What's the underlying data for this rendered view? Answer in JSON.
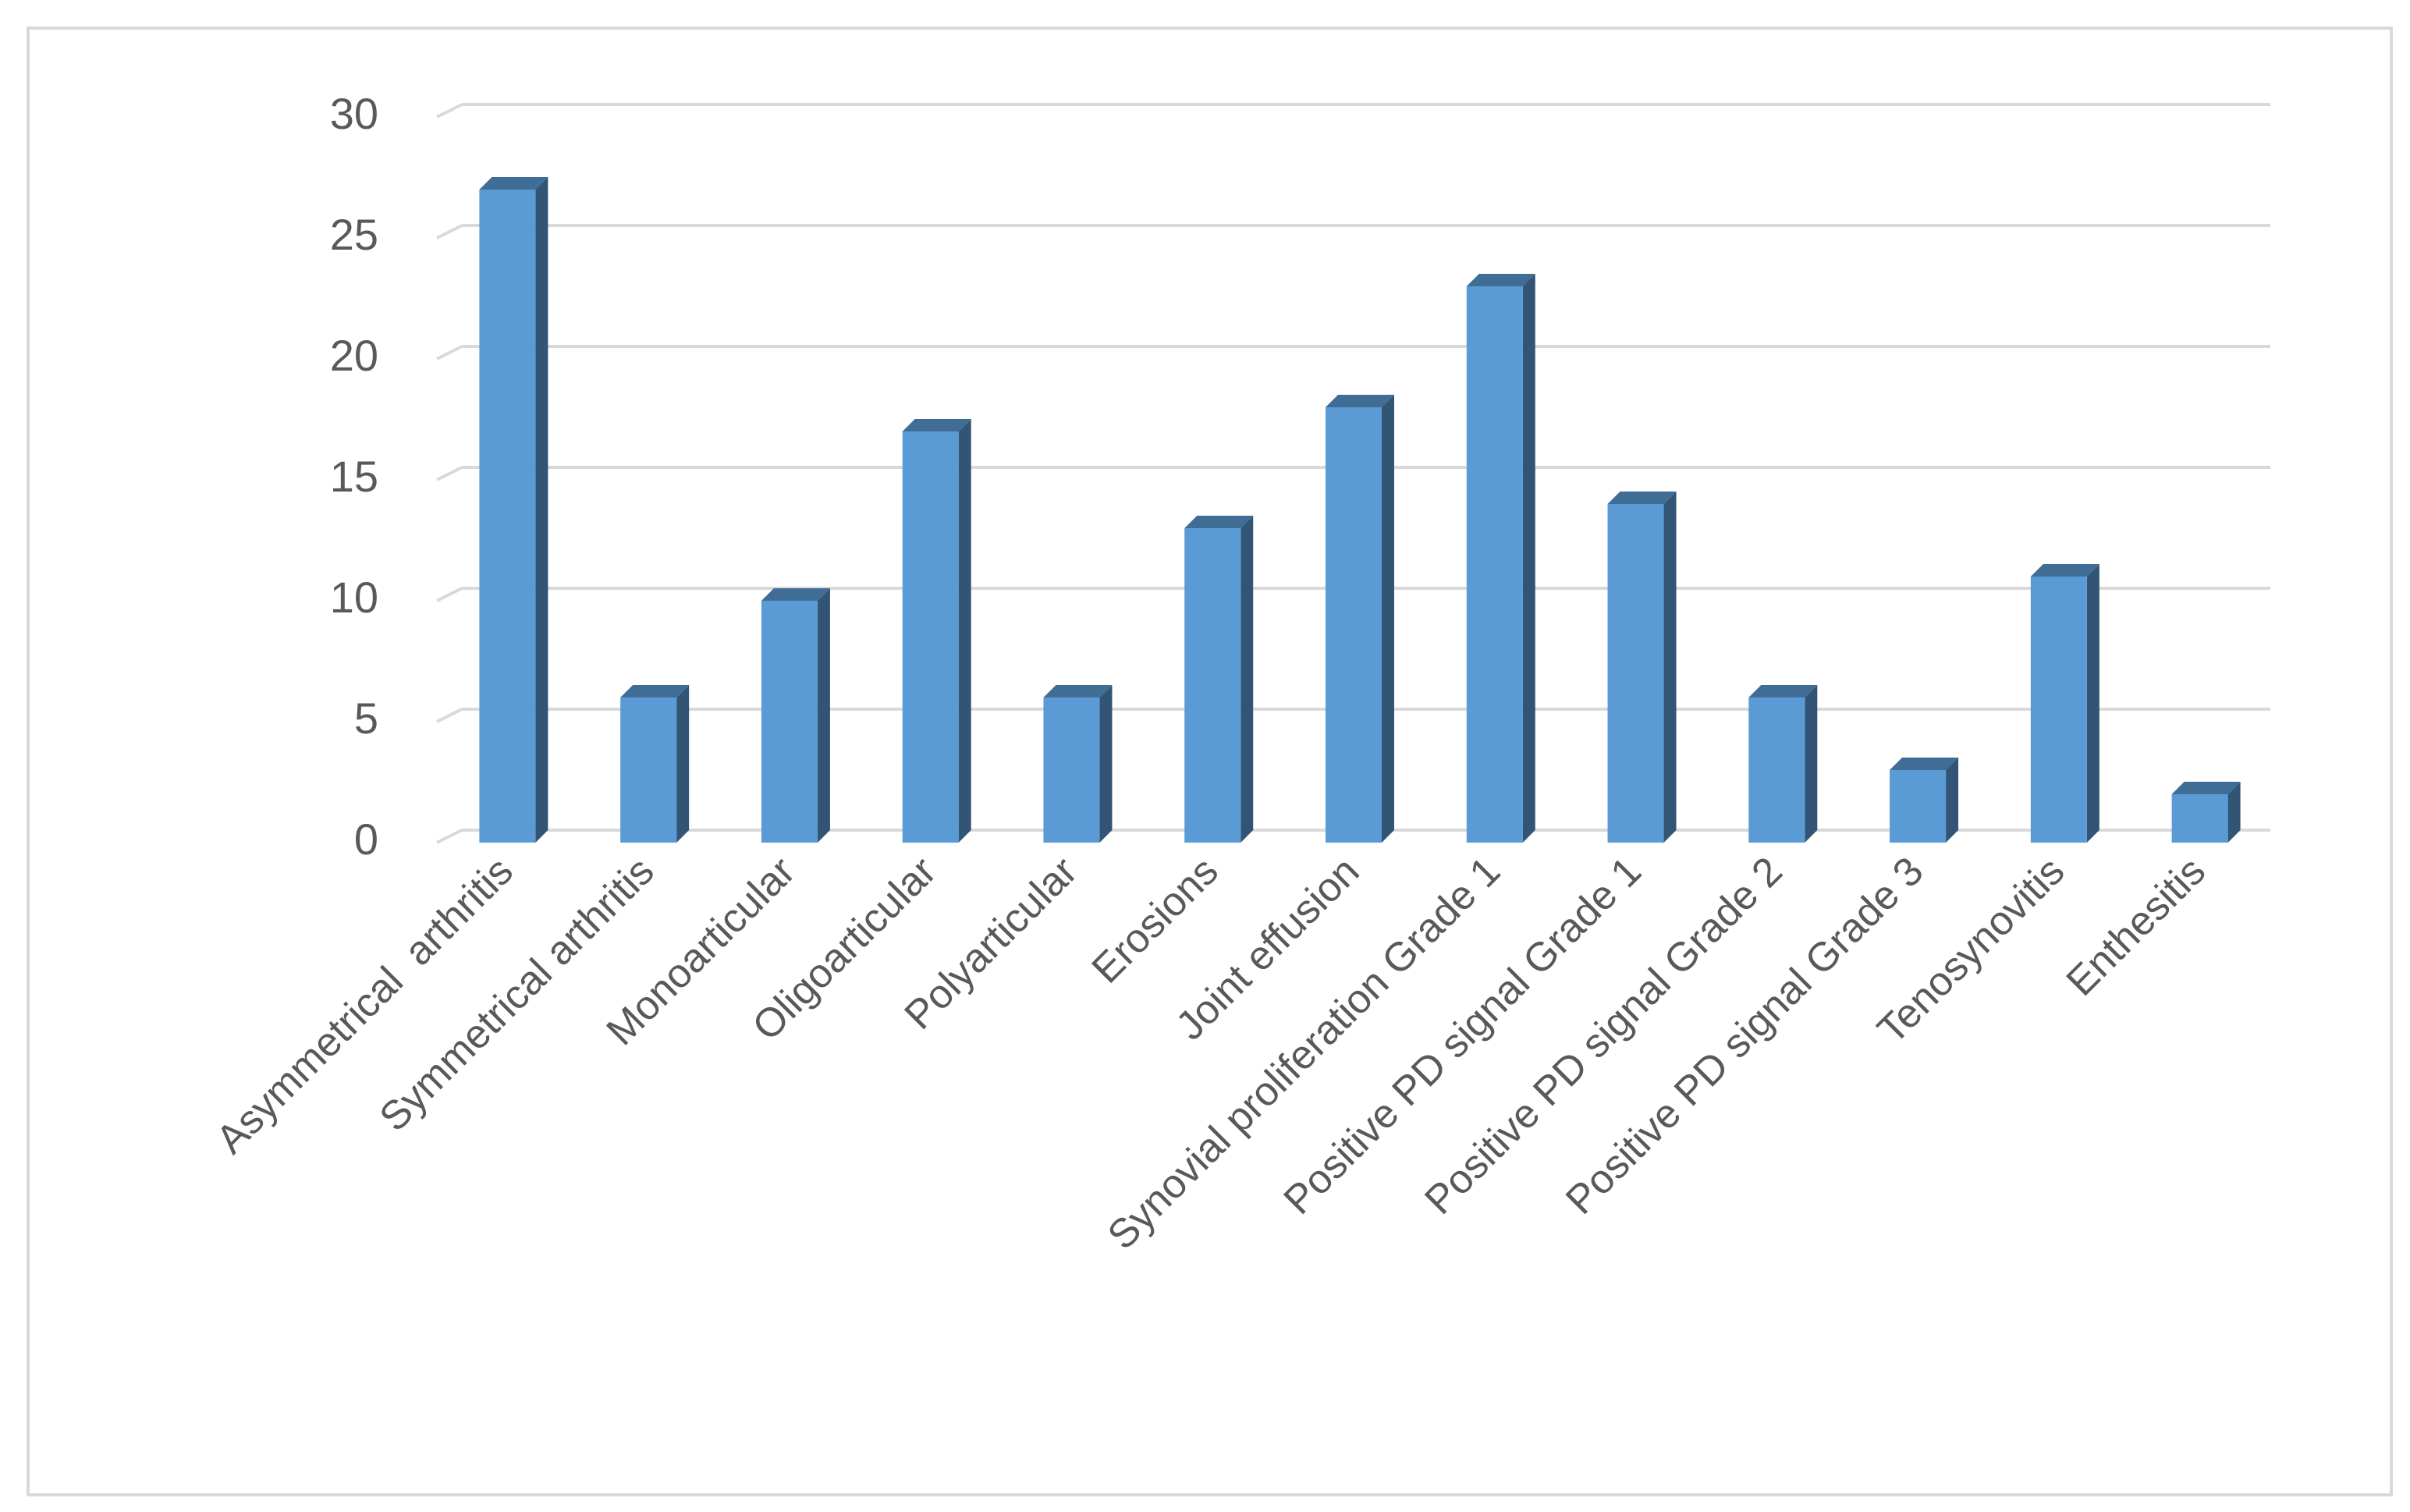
{
  "chart_data": {
    "type": "bar3d",
    "categories": [
      "Asymmetrical  arthritis",
      "Symmetrical arthritis",
      "Monoarticular",
      "Oligoarticular",
      "Polyarticular",
      "Erosions",
      "Joint effusion",
      "Synovial proliferation Grade 1",
      "Positive PD signal Grade 1",
      "Positive PD signal Grade 2",
      "Positive PD signal Grade 3",
      "Tenosynovitis",
      "Enthesitis"
    ],
    "values": [
      27,
      6,
      10,
      17,
      6,
      13,
      18,
      23,
      14,
      6,
      3,
      11,
      2
    ],
    "color": "#5b9bd5",
    "ylim": [
      0,
      30
    ],
    "yticks": [
      0,
      5,
      10,
      15,
      20,
      25,
      30
    ],
    "grid": true
  }
}
